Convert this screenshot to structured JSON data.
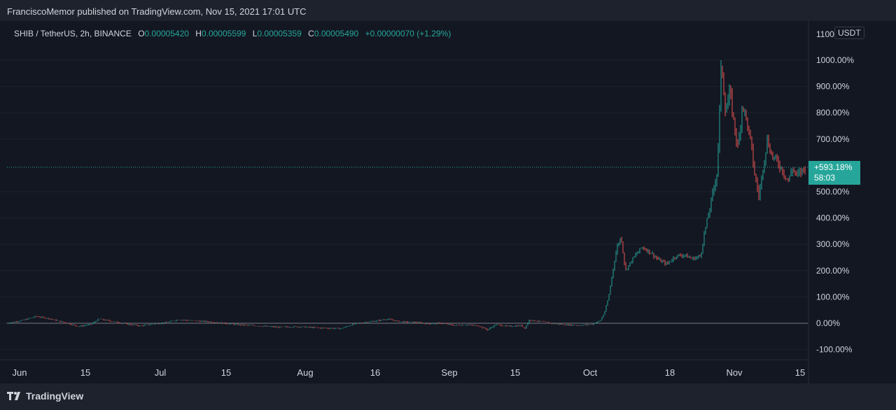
{
  "header": {
    "published_text": "FranciscoMemor published on TradingView.com, Nov 15, 2021 17:01 UTC"
  },
  "legend": {
    "symbol": "SHIB / TetherUS, 2h, BINANCE",
    "open_label": "O",
    "open": "0.00005420",
    "high_label": "H",
    "high": "0.00005599",
    "low_label": "L",
    "low": "0.00005359",
    "close_label": "C",
    "close": "0.00005490",
    "change": "+0.00000070 (+1.29%)"
  },
  "currency_button": "USDT",
  "price_label": {
    "percent": "+593.18%",
    "countdown": "58:03"
  },
  "footer": {
    "brand": "TradingView",
    "logo_icon": "tradingview-logo-icon"
  },
  "colors": {
    "up": "#26a69a",
    "down": "#ef5350",
    "background": "#131722",
    "grid": "#1e222d",
    "text": "#d1d4dc"
  },
  "chart_data": {
    "type": "candlestick",
    "symbol": "SHIB / TetherUS",
    "interval": "2h",
    "y_scale": "percent",
    "y_ticks": [
      {
        "v": 1000,
        "label": "1000.00%"
      },
      {
        "v": 900,
        "label": "900.00%"
      },
      {
        "v": 800,
        "label": "800.00%"
      },
      {
        "v": 700,
        "label": "700.00%"
      },
      {
        "v": 500,
        "label": "500.00%"
      },
      {
        "v": 400,
        "label": "400.00%"
      },
      {
        "v": 300,
        "label": "300.00%"
      },
      {
        "v": 200,
        "label": "200.00%"
      },
      {
        "v": 100,
        "label": "100.00%"
      },
      {
        "v": 0,
        "label": "0.00%"
      },
      {
        "v": -100,
        "label": "-100.00%"
      }
    ],
    "y_top_partial_label": "1100",
    "x_ticks": [
      "Jun",
      "15",
      "Jul",
      "15",
      "Aug",
      "16",
      "Sep",
      "15",
      "Oct",
      "18",
      "Nov",
      "15"
    ],
    "ylim": [
      -130,
      1100
    ],
    "last_value": 593.18,
    "series": [
      {
        "d": 0,
        "v": 0
      },
      {
        "d": 4,
        "v": 12
      },
      {
        "d": 7,
        "v": 26
      },
      {
        "d": 10,
        "v": 18
      },
      {
        "d": 14,
        "v": 2
      },
      {
        "d": 17,
        "v": -12
      },
      {
        "d": 20,
        "v": -5
      },
      {
        "d": 22,
        "v": 16
      },
      {
        "d": 25,
        "v": 8
      },
      {
        "d": 29,
        "v": -4
      },
      {
        "d": 32,
        "v": -10
      },
      {
        "d": 35,
        "v": -3
      },
      {
        "d": 38,
        "v": 2
      },
      {
        "d": 41,
        "v": 14
      },
      {
        "d": 44,
        "v": 10
      },
      {
        "d": 48,
        "v": 6
      },
      {
        "d": 52,
        "v": 0
      },
      {
        "d": 55,
        "v": -5
      },
      {
        "d": 60,
        "v": -10
      },
      {
        "d": 65,
        "v": -15
      },
      {
        "d": 70,
        "v": -13
      },
      {
        "d": 75,
        "v": -18
      },
      {
        "d": 80,
        "v": -20
      },
      {
        "d": 83,
        "v": -3
      },
      {
        "d": 86,
        "v": 4
      },
      {
        "d": 88,
        "v": 8
      },
      {
        "d": 91,
        "v": 16
      },
      {
        "d": 94,
        "v": 6
      },
      {
        "d": 98,
        "v": 3
      },
      {
        "d": 101,
        "v": -2
      },
      {
        "d": 104,
        "v": 0
      },
      {
        "d": 107,
        "v": -8
      },
      {
        "d": 110,
        "v": -6
      },
      {
        "d": 113,
        "v": -10
      },
      {
        "d": 115,
        "v": -25
      },
      {
        "d": 117,
        "v": -5
      },
      {
        "d": 120,
        "v": -12
      },
      {
        "d": 123,
        "v": -9
      },
      {
        "d": 124,
        "v": -18
      },
      {
        "d": 125,
        "v": 12
      },
      {
        "d": 128,
        "v": 6
      },
      {
        "d": 131,
        "v": -2
      },
      {
        "d": 134,
        "v": -6
      },
      {
        "d": 137,
        "v": -8
      },
      {
        "d": 140,
        "v": -4
      },
      {
        "d": 142,
        "v": 10
      },
      {
        "d": 143,
        "v": 40
      },
      {
        "d": 144,
        "v": 100
      },
      {
        "d": 145,
        "v": 200
      },
      {
        "d": 146,
        "v": 290
      },
      {
        "d": 147,
        "v": 330
      },
      {
        "d": 148,
        "v": 200
      },
      {
        "d": 150,
        "v": 250
      },
      {
        "d": 152,
        "v": 290
      },
      {
        "d": 154,
        "v": 270
      },
      {
        "d": 156,
        "v": 240
      },
      {
        "d": 158,
        "v": 225
      },
      {
        "d": 160,
        "v": 255
      },
      {
        "d": 162,
        "v": 260
      },
      {
        "d": 164,
        "v": 245
      },
      {
        "d": 166,
        "v": 255
      },
      {
        "d": 167,
        "v": 350
      },
      {
        "d": 168,
        "v": 420
      },
      {
        "d": 169,
        "v": 500
      },
      {
        "d": 170,
        "v": 580
      },
      {
        "d": 171,
        "v": 1000
      },
      {
        "d": 172,
        "v": 800
      },
      {
        "d": 173,
        "v": 880
      },
      {
        "d": 174,
        "v": 760
      },
      {
        "d": 175,
        "v": 660
      },
      {
        "d": 176,
        "v": 840
      },
      {
        "d": 177,
        "v": 770
      },
      {
        "d": 178,
        "v": 690
      },
      {
        "d": 179,
        "v": 560
      },
      {
        "d": 180,
        "v": 480
      },
      {
        "d": 181,
        "v": 600
      },
      {
        "d": 182,
        "v": 700
      },
      {
        "d": 183,
        "v": 640
      },
      {
        "d": 184,
        "v": 620
      },
      {
        "d": 185,
        "v": 600
      },
      {
        "d": 186,
        "v": 570
      },
      {
        "d": 187,
        "v": 540
      },
      {
        "d": 188,
        "v": 590
      },
      {
        "d": 189,
        "v": 560
      },
      {
        "d": 190,
        "v": 575
      },
      {
        "d": 191,
        "v": 593.18
      }
    ]
  }
}
